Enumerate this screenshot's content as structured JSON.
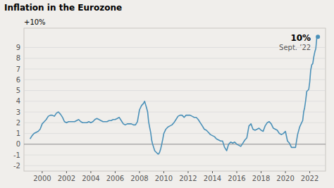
{
  "chart_data": {
    "type": "line",
    "title": "Inflation in the Eurozone",
    "ylabel": "+10%",
    "annotations": [
      "10%",
      "Sept. ’22"
    ],
    "color": "#4a90b8",
    "grid": true,
    "xlim": [
      1998.5,
      2023.3
    ],
    "xticks": [
      2000,
      2002,
      2004,
      2006,
      2008,
      2010,
      2012,
      2014,
      2016,
      2018,
      2020,
      2022
    ],
    "ylim": [
      -2.5,
      10.8
    ],
    "yticks": [
      -2,
      -1,
      0,
      1,
      2,
      3,
      4,
      5,
      6,
      7,
      8,
      9
    ],
    "x": [
      1999.0,
      1999.17,
      1999.33,
      1999.5,
      1999.67,
      1999.83,
      2000.0,
      2000.17,
      2000.33,
      2000.5,
      2000.67,
      2000.83,
      2001.0,
      2001.17,
      2001.33,
      2001.5,
      2001.67,
      2001.83,
      2002.0,
      2002.17,
      2002.33,
      2002.5,
      2002.67,
      2002.83,
      2003.0,
      2003.17,
      2003.33,
      2003.5,
      2003.67,
      2003.83,
      2004.0,
      2004.17,
      2004.33,
      2004.5,
      2004.67,
      2004.83,
      2005.0,
      2005.17,
      2005.33,
      2005.5,
      2005.67,
      2005.83,
      2006.0,
      2006.17,
      2006.33,
      2006.5,
      2006.67,
      2006.83,
      2007.0,
      2007.17,
      2007.33,
      2007.5,
      2007.67,
      2007.83,
      2008.0,
      2008.17,
      2008.33,
      2008.42,
      2008.5,
      2008.58,
      2008.67,
      2008.75,
      2008.83,
      2008.92,
      2009.0,
      2009.08,
      2009.17,
      2009.25,
      2009.33,
      2009.42,
      2009.5,
      2009.58,
      2009.67,
      2009.75,
      2009.83,
      2009.92,
      2010.0,
      2010.17,
      2010.33,
      2010.5,
      2010.67,
      2010.83,
      2011.0,
      2011.17,
      2011.33,
      2011.5,
      2011.67,
      2011.83,
      2012.0,
      2012.17,
      2012.33,
      2012.5,
      2012.67,
      2012.83,
      2013.0,
      2013.17,
      2013.33,
      2013.5,
      2013.67,
      2013.83,
      2014.0,
      2014.17,
      2014.33,
      2014.5,
      2014.67,
      2014.83,
      2015.0,
      2015.17,
      2015.33,
      2015.5,
      2015.67,
      2015.83,
      2016.0,
      2016.17,
      2016.33,
      2016.5,
      2016.67,
      2016.83,
      2017.0,
      2017.17,
      2017.33,
      2017.5,
      2017.67,
      2017.83,
      2018.0,
      2018.17,
      2018.33,
      2018.5,
      2018.67,
      2018.83,
      2019.0,
      2019.17,
      2019.33,
      2019.5,
      2019.67,
      2019.83,
      2020.0,
      2020.17,
      2020.33,
      2020.5,
      2020.67,
      2020.83,
      2021.0,
      2021.17,
      2021.33,
      2021.42,
      2021.5,
      2021.58,
      2021.67,
      2021.75,
      2021.83,
      2021.92,
      2022.0,
      2022.08,
      2022.17,
      2022.25,
      2022.33,
      2022.42,
      2022.5,
      2022.58,
      2022.67
    ],
    "values": [
      0.5,
      0.8,
      1.0,
      1.1,
      1.2,
      1.4,
      1.9,
      2.1,
      2.3,
      2.6,
      2.7,
      2.7,
      2.6,
      2.9,
      3.0,
      2.8,
      2.5,
      2.1,
      2.0,
      2.1,
      2.1,
      2.1,
      2.1,
      2.2,
      2.3,
      2.1,
      2.0,
      2.0,
      2.0,
      2.1,
      2.0,
      2.1,
      2.3,
      2.4,
      2.3,
      2.2,
      2.1,
      2.1,
      2.1,
      2.2,
      2.2,
      2.3,
      2.3,
      2.4,
      2.5,
      2.2,
      1.9,
      1.8,
      1.9,
      1.9,
      1.9,
      1.8,
      1.8,
      2.1,
      3.2,
      3.6,
      3.8,
      4.0,
      3.7,
      3.4,
      3.0,
      2.1,
      1.6,
      1.1,
      0.4,
      0.0,
      -0.3,
      -0.6,
      -0.7,
      -0.8,
      -0.9,
      -0.9,
      -0.7,
      -0.4,
      0.0,
      0.5,
      1.0,
      1.4,
      1.6,
      1.7,
      1.8,
      2.0,
      2.3,
      2.6,
      2.7,
      2.7,
      2.5,
      2.7,
      2.7,
      2.7,
      2.6,
      2.5,
      2.5,
      2.3,
      2.0,
      1.7,
      1.4,
      1.3,
      1.1,
      0.9,
      0.8,
      0.7,
      0.5,
      0.4,
      0.3,
      0.3,
      -0.3,
      -0.6,
      0.0,
      0.2,
      0.1,
      0.2,
      0.0,
      -0.1,
      -0.2,
      0.1,
      0.4,
      0.6,
      1.7,
      1.9,
      1.4,
      1.3,
      1.4,
      1.5,
      1.3,
      1.2,
      1.7,
      2.0,
      2.1,
      1.9,
      1.5,
      1.4,
      1.3,
      1.0,
      0.9,
      1.0,
      1.2,
      0.3,
      0.1,
      -0.3,
      -0.3,
      -0.3,
      0.9,
      1.6,
      2.0,
      2.2,
      3.0,
      3.4,
      4.1,
      4.9,
      5.0,
      5.1,
      5.8,
      6.9,
      7.4,
      7.5,
      8.1,
      8.6,
      8.9,
      9.9,
      10.0
    ]
  }
}
